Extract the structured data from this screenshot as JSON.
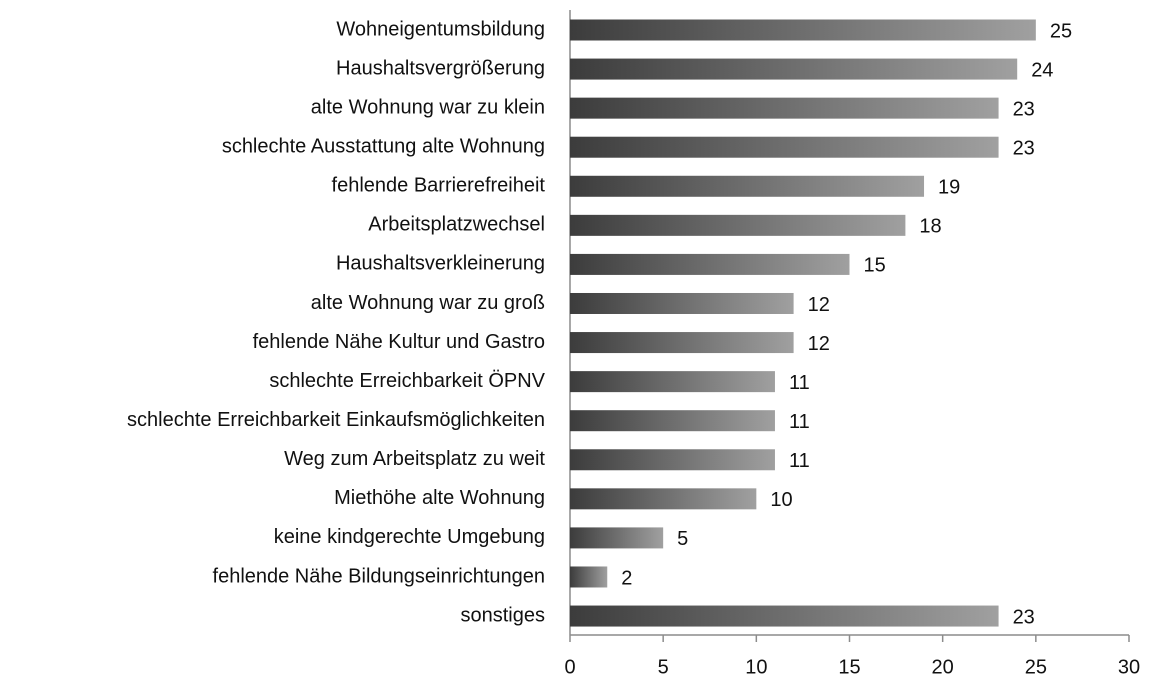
{
  "chart_data": {
    "type": "bar",
    "orientation": "horizontal",
    "categories": [
      "Wohneigentumsbildung",
      "Haushaltsvergrößerung",
      "alte Wohnung war zu klein",
      "schlechte Ausstattung alte Wohnung",
      "fehlende Barrierefreiheit",
      "Arbeitsplatzwechsel",
      "Haushaltsverkleinerung",
      "alte Wohnung war zu groß",
      "fehlende Nähe Kultur und Gastro",
      "schlechte Erreichbarkeit ÖPNV",
      "schlechte Erreichbarkeit Einkaufsmöglichkeiten",
      "Weg zum Arbeitsplatz zu weit",
      "Miethöhe alte Wohnung",
      "keine kindgerechte Umgebung",
      "fehlende Nähe Bildungseinrichtungen",
      "sonstiges"
    ],
    "values": [
      25,
      24,
      23,
      23,
      19,
      18,
      15,
      12,
      12,
      11,
      11,
      11,
      10,
      5,
      2,
      23
    ],
    "color": [
      "#3c3c3c",
      "#a0a0a0"
    ],
    "xlim": [
      0,
      30
    ],
    "xticks": [
      0,
      5,
      10,
      15,
      20,
      25,
      30
    ],
    "grid": false
  }
}
